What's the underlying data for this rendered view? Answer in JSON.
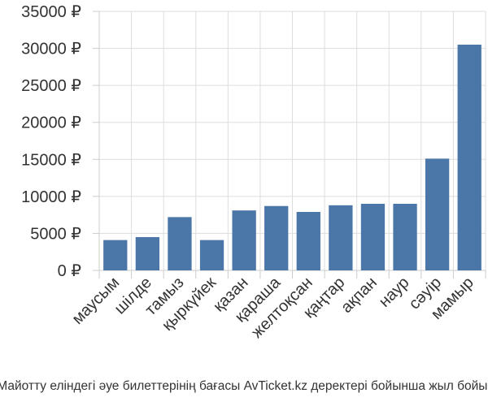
{
  "chart_data": {
    "type": "bar",
    "categories": [
      "маусым",
      "шілде",
      "тамыз",
      "қыркүйек",
      "қазан",
      "қараша",
      "желтоқсан",
      "қаңтар",
      "ақпан",
      "наур",
      "сәуір",
      "мамыр"
    ],
    "values": [
      4100,
      4500,
      7200,
      4100,
      8100,
      8700,
      7900,
      8800,
      9000,
      9000,
      15100,
      30500
    ],
    "y_tick_labels": [
      "0 ₽",
      "5000 ₽",
      "10000 ₽",
      "15000 ₽",
      "20000 ₽",
      "25000 ₽",
      "30000 ₽",
      "35000 ₽"
    ],
    "ylim": [
      0,
      35000
    ],
    "grid": true,
    "bar_color": "#4a76a8",
    "caption": "Майотту еліндегі әуе билеттерінің бағасы AvTicket.kz деректері бойынша жыл бойы."
  }
}
